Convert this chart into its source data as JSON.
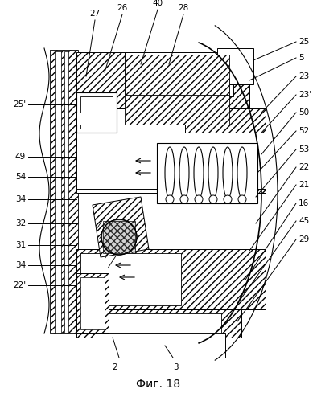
{
  "title": "Фиг. 18",
  "bg_color": "#ffffff",
  "fig_width": 3.94,
  "fig_height": 4.99,
  "dpi": 100
}
